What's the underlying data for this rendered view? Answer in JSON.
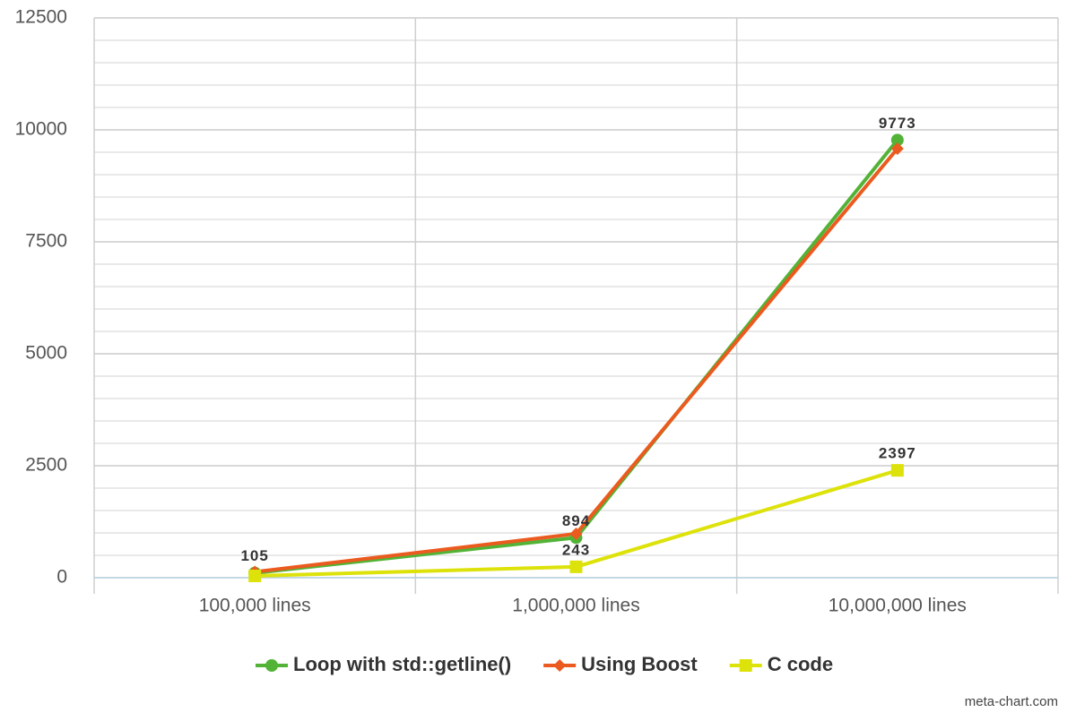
{
  "chart_data": {
    "type": "line",
    "categories": [
      "100,000 lines",
      "1,000,000 lines",
      "10,000,000 lines"
    ],
    "series": [
      {
        "name": "Loop with std::getline()",
        "color": "#52b336",
        "marker": "circle",
        "values": [
          105,
          894,
          9773
        ],
        "value_labels": [
          "105",
          "894",
          "9773"
        ]
      },
      {
        "name": "Using Boost",
        "color": "#eb5a1e",
        "marker": "diamond",
        "values": [
          130,
          980,
          9580
        ]
      },
      {
        "name": "C code",
        "color": "#dde20a",
        "marker": "square",
        "values": [
          40,
          243,
          2397
        ],
        "value_labels": [
          null,
          "243",
          "2397"
        ]
      }
    ],
    "ylim": [
      0,
      12500
    ],
    "yticks": [
      0,
      2500,
      5000,
      7500,
      10000,
      12500
    ],
    "grid": true,
    "minor_grid_step": 500,
    "legend": "bottom",
    "source": "meta-chart.com"
  }
}
